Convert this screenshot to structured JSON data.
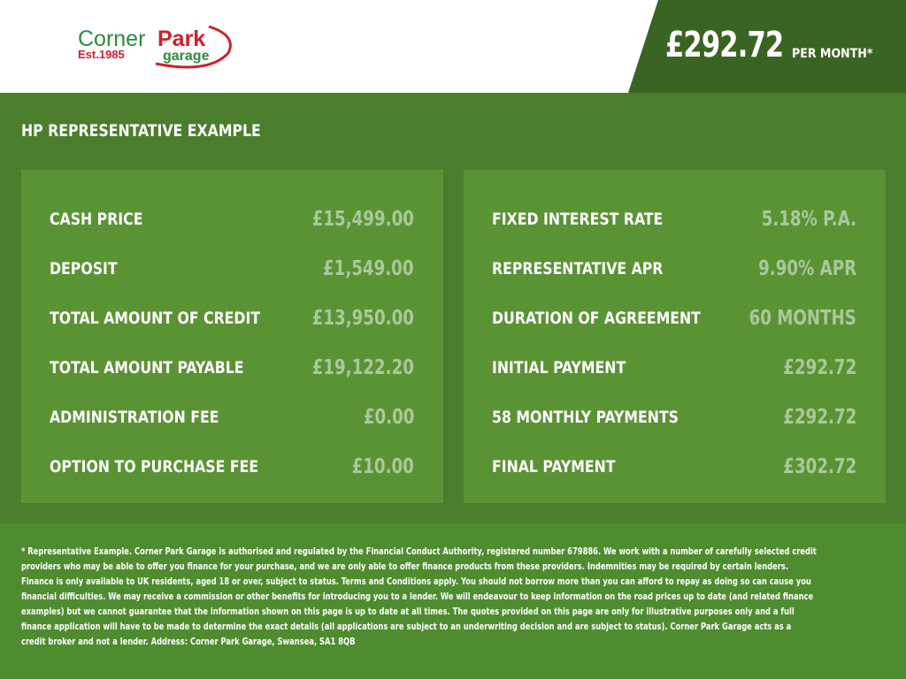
{
  "logo": {
    "brand_part1": "Corner",
    "brand_part2": "Park",
    "tagline": "garage",
    "established": "Est.1985"
  },
  "header": {
    "monthly_price": "£292.72",
    "per_month_label": "PER MONTH*"
  },
  "section_title": "HP REPRESENTATIVE EXAMPLE",
  "left_panel": [
    {
      "label": "CASH PRICE",
      "value": "£15,499.00"
    },
    {
      "label": "DEPOSIT",
      "value": "£1,549.00"
    },
    {
      "label": "TOTAL AMOUNT OF CREDIT",
      "value": "£13,950.00"
    },
    {
      "label": "TOTAL AMOUNT PAYABLE",
      "value": "£19,122.20"
    },
    {
      "label": "ADMINISTRATION FEE",
      "value": "£0.00"
    },
    {
      "label": "OPTION TO PURCHASE FEE",
      "value": "£10.00"
    }
  ],
  "right_panel": [
    {
      "label": "FIXED INTEREST RATE",
      "value": "5.18% P.A."
    },
    {
      "label": "REPRESENTATIVE APR",
      "value": "9.90% APR"
    },
    {
      "label": "DURATION OF AGREEMENT",
      "value": "60 MONTHS"
    },
    {
      "label": "INITIAL PAYMENT",
      "value": "£292.72"
    },
    {
      "label": "58 MONTHLY PAYMENTS",
      "value": "£292.72"
    },
    {
      "label": "FINAL PAYMENT",
      "value": "£302.72"
    }
  ],
  "disclaimer": "* Representative Example. Corner Park Garage is authorised and regulated by the Financial Conduct Authority, registered number 679886. We work with a number of carefully selected credit providers who may be able to offer you finance for your purchase, and we are only able to offer finance products from these providers. Indemnities may be required by certain lenders. Finance is only available to UK residents, aged 18 or over, subject to status. Terms and Conditions apply. You should not borrow more than you can afford to repay as doing so can cause you financial difficulties. We may receive a commission or other benefits for introducing you to a lender. We will endeavour to keep information on the road prices up to date (and related finance examples) but we cannot guarantee that the information shown on this page is up to date at all times. The quotes provided on this page are only for illustrative purposes only and a full finance application will have to be made to determine the exact details (all applications are subject to an underwriting decision and are subject to status). Corner Park Garage acts as a credit broker and not a lender. Address: Corner Park Garage, Swansea, SA1 8QB",
  "colors": {
    "brand_green": "#2e8b3e",
    "brand_red": "#d0202a",
    "header_dark": "#3a6423",
    "background": "#4a7e2c",
    "panel": "#5a9334",
    "value_text": "#a9c99a"
  }
}
